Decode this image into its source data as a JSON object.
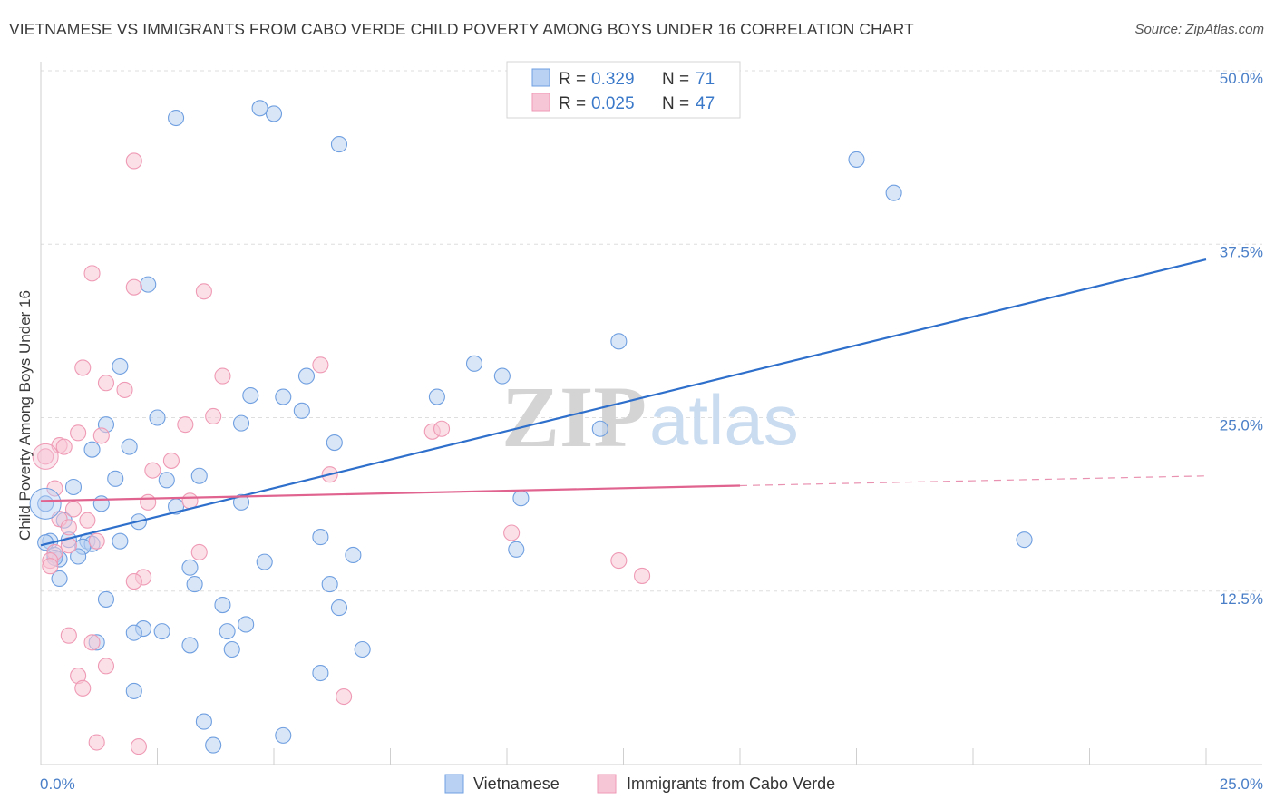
{
  "title": "VIETNAMESE VS IMMIGRANTS FROM CABO VERDE CHILD POVERTY AMONG BOYS UNDER 16 CORRELATION CHART",
  "source": "Source: ZipAtlas.com",
  "watermark": {
    "zip": "ZIP",
    "atlas": "atlas"
  },
  "legend": {
    "rows": [
      {
        "r_label": "R = ",
        "r_value": "0.329",
        "n_label": "N = ",
        "n_value": "71"
      },
      {
        "r_label": "R = ",
        "r_value": "0.025",
        "n_label": "N = ",
        "n_value": "47"
      }
    ]
  },
  "bottom_legend": [
    "Vietnamese",
    "Immigrants from Cabo Verde"
  ],
  "chart_data": {
    "type": "scatter",
    "title": "VIETNAMESE VS IMMIGRANTS FROM CABO VERDE CHILD POVERTY AMONG BOYS UNDER 16 CORRELATION CHART",
    "xlabel": "",
    "ylabel": "Child Poverty Among Boys Under 16",
    "xlim": [
      0,
      25
    ],
    "ylim": [
      0,
      50
    ],
    "x_ticks": [
      "0.0%",
      "25.0%"
    ],
    "y_ticks": [
      {
        "value": 12.5,
        "label": "12.5%"
      },
      {
        "value": 25,
        "label": "25.0%"
      },
      {
        "value": 37.5,
        "label": "37.5%"
      },
      {
        "value": 50,
        "label": "50.0%"
      }
    ],
    "grid": true,
    "legend_position": "top-center",
    "series": [
      {
        "name": "Vietnamese",
        "color": "#6f9fe0",
        "fill": "#b9d1f3",
        "trend": {
          "x": [
            0,
            25
          ],
          "y": [
            15.8,
            36.4
          ],
          "color": "#2e6fcb"
        },
        "points": [
          [
            2.9,
            46.6
          ],
          [
            4.7,
            47.3
          ],
          [
            5.0,
            46.9
          ],
          [
            6.4,
            44.7
          ],
          [
            17.5,
            43.6
          ],
          [
            18.3,
            41.2
          ],
          [
            2.3,
            34.6
          ],
          [
            12.4,
            30.5
          ],
          [
            9.3,
            28.9
          ],
          [
            1.7,
            28.7
          ],
          [
            9.9,
            28.0
          ],
          [
            5.7,
            28.0
          ],
          [
            4.5,
            26.6
          ],
          [
            5.2,
            26.5
          ],
          [
            8.5,
            26.5
          ],
          [
            5.6,
            25.5
          ],
          [
            2.5,
            25.0
          ],
          [
            4.3,
            24.6
          ],
          [
            1.4,
            24.5
          ],
          [
            12.0,
            24.2
          ],
          [
            6.3,
            23.2
          ],
          [
            1.9,
            22.9
          ],
          [
            1.1,
            22.7
          ],
          [
            3.4,
            20.8
          ],
          [
            1.6,
            20.6
          ],
          [
            2.7,
            20.5
          ],
          [
            0.7,
            20.0
          ],
          [
            10.3,
            19.2
          ],
          [
            4.3,
            18.9
          ],
          [
            1.3,
            18.8
          ],
          [
            2.9,
            18.6
          ],
          [
            0.1,
            18.8
          ],
          [
            2.1,
            17.5
          ],
          [
            0.5,
            17.6
          ],
          [
            6.0,
            16.4
          ],
          [
            21.1,
            16.2
          ],
          [
            0.2,
            16.1
          ],
          [
            0.6,
            16.2
          ],
          [
            1.0,
            16.1
          ],
          [
            1.1,
            15.9
          ],
          [
            1.7,
            16.1
          ],
          [
            10.2,
            15.5
          ],
          [
            0.9,
            15.7
          ],
          [
            0.3,
            15.1
          ],
          [
            0.4,
            14.8
          ],
          [
            0.8,
            15.0
          ],
          [
            6.7,
            15.1
          ],
          [
            4.8,
            14.6
          ],
          [
            3.2,
            14.2
          ],
          [
            0.4,
            13.4
          ],
          [
            6.2,
            13.0
          ],
          [
            3.3,
            13.0
          ],
          [
            1.4,
            11.9
          ],
          [
            3.9,
            11.5
          ],
          [
            6.4,
            11.3
          ],
          [
            4.4,
            10.1
          ],
          [
            2.2,
            9.8
          ],
          [
            2.0,
            9.5
          ],
          [
            2.6,
            9.6
          ],
          [
            4.0,
            9.6
          ],
          [
            3.2,
            8.6
          ],
          [
            4.1,
            8.3
          ],
          [
            6.9,
            8.3
          ],
          [
            1.2,
            8.8
          ],
          [
            6.0,
            6.6
          ],
          [
            2.0,
            5.3
          ],
          [
            3.5,
            3.1
          ],
          [
            3.7,
            1.4
          ],
          [
            5.2,
            2.1
          ],
          [
            0.1,
            16.0
          ],
          [
            0.3,
            14.9
          ]
        ]
      },
      {
        "name": "Immigrants from Cabo Verde",
        "color": "#ef9ab5",
        "fill": "#f7c6d6",
        "trend": {
          "x": [
            0,
            15
          ],
          "y": [
            19.0,
            20.1
          ],
          "dash_x": [
            15,
            25
          ],
          "dash_y": [
            20.1,
            20.8
          ],
          "color": "#e0628e"
        },
        "points": [
          [
            2.0,
            43.5
          ],
          [
            1.1,
            35.4
          ],
          [
            2.0,
            34.4
          ],
          [
            3.5,
            34.1
          ],
          [
            6.0,
            28.8
          ],
          [
            0.9,
            28.6
          ],
          [
            3.9,
            28.0
          ],
          [
            1.4,
            27.5
          ],
          [
            1.8,
            27.0
          ],
          [
            3.7,
            25.1
          ],
          [
            3.1,
            24.5
          ],
          [
            8.4,
            24.0
          ],
          [
            8.6,
            24.2
          ],
          [
            1.3,
            23.7
          ],
          [
            0.8,
            23.9
          ],
          [
            0.4,
            23.0
          ],
          [
            0.5,
            22.9
          ],
          [
            2.8,
            21.9
          ],
          [
            2.4,
            21.2
          ],
          [
            6.2,
            20.9
          ],
          [
            0.1,
            22.2
          ],
          [
            0.3,
            19.9
          ],
          [
            3.2,
            19.0
          ],
          [
            2.3,
            18.9
          ],
          [
            0.7,
            18.4
          ],
          [
            0.4,
            17.7
          ],
          [
            1.0,
            17.6
          ],
          [
            0.6,
            17.1
          ],
          [
            10.1,
            16.7
          ],
          [
            1.2,
            16.1
          ],
          [
            0.6,
            15.8
          ],
          [
            0.3,
            15.3
          ],
          [
            3.4,
            15.3
          ],
          [
            0.2,
            14.7
          ],
          [
            12.4,
            14.7
          ],
          [
            12.9,
            13.6
          ],
          [
            2.2,
            13.5
          ],
          [
            2.0,
            13.2
          ],
          [
            0.6,
            9.3
          ],
          [
            1.1,
            8.8
          ],
          [
            0.8,
            6.4
          ],
          [
            1.4,
            7.1
          ],
          [
            0.9,
            5.5
          ],
          [
            6.5,
            4.9
          ],
          [
            1.2,
            1.6
          ],
          [
            2.1,
            1.3
          ],
          [
            0.2,
            14.3
          ]
        ]
      }
    ]
  }
}
